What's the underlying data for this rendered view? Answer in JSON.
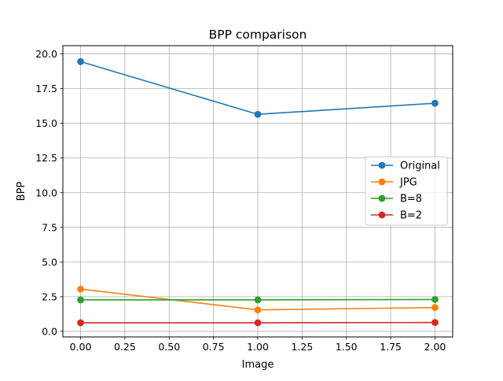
{
  "chart_data": {
    "type": "line",
    "title": "BPP comparison",
    "xlabel": "Image",
    "ylabel": "BPP",
    "xlim": [
      -0.1,
      2.1
    ],
    "ylim": [
      -0.4,
      20.6
    ],
    "x_ticks": [
      0.0,
      0.25,
      0.5,
      0.75,
      1.0,
      1.25,
      1.5,
      1.75,
      2.0
    ],
    "x_tick_labels": [
      "0.00",
      "0.25",
      "0.50",
      "0.75",
      "1.00",
      "1.25",
      "1.50",
      "1.75",
      "2.00"
    ],
    "y_ticks": [
      0.0,
      2.5,
      5.0,
      7.5,
      10.0,
      12.5,
      15.0,
      17.5,
      20.0
    ],
    "y_tick_labels": [
      "0.0",
      "2.5",
      "5.0",
      "7.5",
      "10.0",
      "12.5",
      "15.0",
      "17.5",
      "20.0"
    ],
    "grid": true,
    "legend_position": "center-right",
    "x": [
      0,
      1,
      2
    ],
    "series": [
      {
        "name": "Original",
        "color": "#1f77b4",
        "values": [
          19.45,
          15.65,
          16.45
        ]
      },
      {
        "name": "JPG",
        "color": "#ff7f0e",
        "values": [
          3.05,
          1.55,
          1.72
        ]
      },
      {
        "name": "B=8",
        "color": "#2ca02c",
        "values": [
          2.27,
          2.27,
          2.3
        ]
      },
      {
        "name": "B=2",
        "color": "#d62728",
        "values": [
          0.62,
          0.62,
          0.64
        ]
      }
    ]
  }
}
